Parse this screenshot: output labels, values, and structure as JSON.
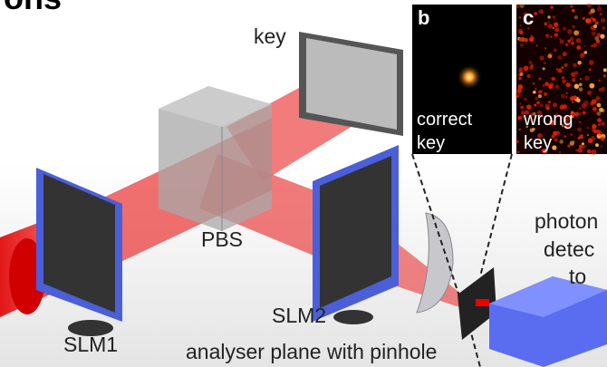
{
  "title": "ons",
  "labels": {
    "key": "key",
    "pbs": "PBS",
    "slm1": "SLM1",
    "slm2": "SLM2",
    "analyser": "analyser plane with pinhole",
    "photon": "photon",
    "detector": "detec",
    "to": "to"
  },
  "insets": [
    {
      "letter": "b",
      "caption": [
        "correct",
        "key"
      ]
    },
    {
      "letter": "c",
      "caption": [
        "wrong",
        "key"
      ]
    }
  ]
}
